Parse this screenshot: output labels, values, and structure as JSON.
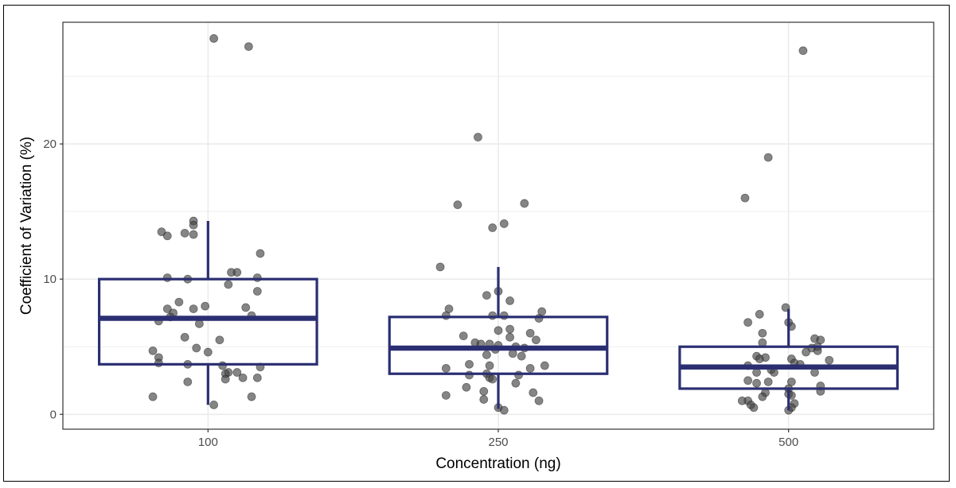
{
  "chart_data": {
    "type": "boxplot",
    "xlabel": "Concentration (ng)",
    "ylabel": "Coefficient of Variation (%)",
    "ylim": [
      -1.1,
      29
    ],
    "yticks": [
      0,
      10,
      20
    ],
    "categories": [
      "100",
      "250",
      "500"
    ],
    "grid": true,
    "colors": {
      "box": "#2b2f72",
      "point": "#444444",
      "grid": "#ebebeb",
      "panel_border": "#333333"
    },
    "boxes": [
      {
        "category": "100",
        "whisker_low": 0.7,
        "q1": 3.7,
        "median": 7.1,
        "q3": 10.0,
        "whisker_high": 14.3
      },
      {
        "category": "250",
        "whisker_low": 0.4,
        "q1": 3.0,
        "median": 4.9,
        "q3": 7.2,
        "whisker_high": 10.9
      },
      {
        "category": "500",
        "whisker_low": 0.3,
        "q1": 1.9,
        "median": 3.5,
        "q3": 5.0,
        "whisker_high": 7.8
      }
    ],
    "points": [
      {
        "category": "100",
        "offset": 0.02,
        "y": 27.8
      },
      {
        "category": "100",
        "offset": 0.14,
        "y": 27.2
      },
      {
        "category": "100",
        "offset": -0.16,
        "y": 13.5
      },
      {
        "category": "100",
        "offset": -0.14,
        "y": 13.2
      },
      {
        "category": "100",
        "offset": -0.08,
        "y": 13.4
      },
      {
        "category": "100",
        "offset": -0.05,
        "y": 13.3
      },
      {
        "category": "100",
        "offset": -0.05,
        "y": 14.3
      },
      {
        "category": "100",
        "offset": -0.05,
        "y": 14.0
      },
      {
        "category": "100",
        "offset": 0.18,
        "y": 11.9
      },
      {
        "category": "100",
        "offset": 0.1,
        "y": 10.5
      },
      {
        "category": "100",
        "offset": 0.08,
        "y": 10.5
      },
      {
        "category": "100",
        "offset": 0.17,
        "y": 10.1
      },
      {
        "category": "100",
        "offset": -0.14,
        "y": 10.1
      },
      {
        "category": "100",
        "offset": -0.07,
        "y": 10.0
      },
      {
        "category": "100",
        "offset": 0.07,
        "y": 9.6
      },
      {
        "category": "100",
        "offset": 0.17,
        "y": 9.1
      },
      {
        "category": "100",
        "offset": -0.1,
        "y": 8.3
      },
      {
        "category": "100",
        "offset": -0.01,
        "y": 8.0
      },
      {
        "category": "100",
        "offset": 0.13,
        "y": 7.9
      },
      {
        "category": "100",
        "offset": -0.14,
        "y": 7.8
      },
      {
        "category": "100",
        "offset": -0.05,
        "y": 7.8
      },
      {
        "category": "100",
        "offset": -0.12,
        "y": 7.5
      },
      {
        "category": "100",
        "offset": 0.15,
        "y": 7.3
      },
      {
        "category": "100",
        "offset": -0.13,
        "y": 7.2
      },
      {
        "category": "100",
        "offset": -0.17,
        "y": 6.9
      },
      {
        "category": "100",
        "offset": -0.03,
        "y": 6.7
      },
      {
        "category": "100",
        "offset": -0.08,
        "y": 5.7
      },
      {
        "category": "100",
        "offset": 0.04,
        "y": 5.5
      },
      {
        "category": "100",
        "offset": -0.04,
        "y": 4.9
      },
      {
        "category": "100",
        "offset": -0.19,
        "y": 4.7
      },
      {
        "category": "100",
        "offset": 0.0,
        "y": 4.6
      },
      {
        "category": "100",
        "offset": -0.17,
        "y": 4.2
      },
      {
        "category": "100",
        "offset": -0.17,
        "y": 3.8
      },
      {
        "category": "100",
        "offset": -0.07,
        "y": 3.7
      },
      {
        "category": "100",
        "offset": 0.05,
        "y": 3.6
      },
      {
        "category": "100",
        "offset": 0.18,
        "y": 3.5
      },
      {
        "category": "100",
        "offset": 0.07,
        "y": 3.1
      },
      {
        "category": "100",
        "offset": 0.1,
        "y": 3.1
      },
      {
        "category": "100",
        "offset": 0.06,
        "y": 3.0
      },
      {
        "category": "100",
        "offset": 0.12,
        "y": 2.7
      },
      {
        "category": "100",
        "offset": 0.17,
        "y": 2.7
      },
      {
        "category": "100",
        "offset": 0.06,
        "y": 2.6
      },
      {
        "category": "100",
        "offset": -0.07,
        "y": 2.4
      },
      {
        "category": "100",
        "offset": 0.15,
        "y": 1.3
      },
      {
        "category": "100",
        "offset": -0.19,
        "y": 1.3
      },
      {
        "category": "100",
        "offset": 0.02,
        "y": 0.7
      },
      {
        "category": "250",
        "offset": -0.07,
        "y": 20.5
      },
      {
        "category": "250",
        "offset": 0.09,
        "y": 15.6
      },
      {
        "category": "250",
        "offset": -0.14,
        "y": 15.5
      },
      {
        "category": "250",
        "offset": 0.02,
        "y": 14.1
      },
      {
        "category": "250",
        "offset": -0.02,
        "y": 13.8
      },
      {
        "category": "250",
        "offset": -0.2,
        "y": 10.9
      },
      {
        "category": "250",
        "offset": -0.04,
        "y": 8.8
      },
      {
        "category": "250",
        "offset": 0.0,
        "y": 9.1
      },
      {
        "category": "250",
        "offset": 0.04,
        "y": 8.4
      },
      {
        "category": "250",
        "offset": -0.17,
        "y": 7.8
      },
      {
        "category": "250",
        "offset": 0.15,
        "y": 7.6
      },
      {
        "category": "250",
        "offset": -0.18,
        "y": 7.3
      },
      {
        "category": "250",
        "offset": -0.02,
        "y": 7.3
      },
      {
        "category": "250",
        "offset": 0.02,
        "y": 7.3
      },
      {
        "category": "250",
        "offset": 0.14,
        "y": 7.1
      },
      {
        "category": "250",
        "offset": 0.04,
        "y": 6.3
      },
      {
        "category": "250",
        "offset": 0.0,
        "y": 6.2
      },
      {
        "category": "250",
        "offset": 0.11,
        "y": 6.0
      },
      {
        "category": "250",
        "offset": -0.12,
        "y": 5.8
      },
      {
        "category": "250",
        "offset": 0.04,
        "y": 5.7
      },
      {
        "category": "250",
        "offset": 0.13,
        "y": 5.5
      },
      {
        "category": "250",
        "offset": -0.08,
        "y": 5.3
      },
      {
        "category": "250",
        "offset": -0.06,
        "y": 5.2
      },
      {
        "category": "250",
        "offset": -0.03,
        "y": 5.2
      },
      {
        "category": "250",
        "offset": 0.0,
        "y": 5.1
      },
      {
        "category": "250",
        "offset": 0.06,
        "y": 5.0
      },
      {
        "category": "250",
        "offset": 0.09,
        "y": 4.9
      },
      {
        "category": "250",
        "offset": -0.01,
        "y": 4.8
      },
      {
        "category": "250",
        "offset": 0.05,
        "y": 4.5
      },
      {
        "category": "250",
        "offset": -0.04,
        "y": 4.4
      },
      {
        "category": "250",
        "offset": 0.08,
        "y": 4.3
      },
      {
        "category": "250",
        "offset": -0.1,
        "y": 3.7
      },
      {
        "category": "250",
        "offset": -0.03,
        "y": 3.6
      },
      {
        "category": "250",
        "offset": 0.16,
        "y": 3.6
      },
      {
        "category": "250",
        "offset": -0.18,
        "y": 3.4
      },
      {
        "category": "250",
        "offset": 0.11,
        "y": 3.4
      },
      {
        "category": "250",
        "offset": -0.04,
        "y": 3.0
      },
      {
        "category": "250",
        "offset": -0.1,
        "y": 2.9
      },
      {
        "category": "250",
        "offset": 0.07,
        "y": 2.9
      },
      {
        "category": "250",
        "offset": -0.03,
        "y": 2.7
      },
      {
        "category": "250",
        "offset": -0.02,
        "y": 2.6
      },
      {
        "category": "250",
        "offset": 0.06,
        "y": 2.3
      },
      {
        "category": "250",
        "offset": -0.11,
        "y": 2.0
      },
      {
        "category": "250",
        "offset": -0.05,
        "y": 1.7
      },
      {
        "category": "250",
        "offset": 0.12,
        "y": 1.6
      },
      {
        "category": "250",
        "offset": -0.18,
        "y": 1.4
      },
      {
        "category": "250",
        "offset": -0.05,
        "y": 1.1
      },
      {
        "category": "250",
        "offset": 0.14,
        "y": 1.0
      },
      {
        "category": "250",
        "offset": 0.0,
        "y": 0.5
      },
      {
        "category": "250",
        "offset": 0.02,
        "y": 0.3
      },
      {
        "category": "500",
        "offset": 0.05,
        "y": 26.9
      },
      {
        "category": "500",
        "offset": -0.07,
        "y": 19.0
      },
      {
        "category": "500",
        "offset": -0.15,
        "y": 16.0
      },
      {
        "category": "500",
        "offset": -0.01,
        "y": 7.9
      },
      {
        "category": "500",
        "offset": -0.1,
        "y": 7.4
      },
      {
        "category": "500",
        "offset": 0.0,
        "y": 6.8
      },
      {
        "category": "500",
        "offset": -0.14,
        "y": 6.8
      },
      {
        "category": "500",
        "offset": 0.01,
        "y": 6.5
      },
      {
        "category": "500",
        "offset": -0.09,
        "y": 6.0
      },
      {
        "category": "500",
        "offset": 0.09,
        "y": 5.6
      },
      {
        "category": "500",
        "offset": 0.11,
        "y": 5.5
      },
      {
        "category": "500",
        "offset": -0.09,
        "y": 5.3
      },
      {
        "category": "500",
        "offset": 0.1,
        "y": 5.0
      },
      {
        "category": "500",
        "offset": 0.08,
        "y": 4.9
      },
      {
        "category": "500",
        "offset": 0.1,
        "y": 4.7
      },
      {
        "category": "500",
        "offset": 0.06,
        "y": 4.6
      },
      {
        "category": "500",
        "offset": -0.11,
        "y": 4.3
      },
      {
        "category": "500",
        "offset": -0.08,
        "y": 4.2
      },
      {
        "category": "500",
        "offset": -0.1,
        "y": 4.1
      },
      {
        "category": "500",
        "offset": 0.01,
        "y": 4.1
      },
      {
        "category": "500",
        "offset": 0.14,
        "y": 4.0
      },
      {
        "category": "500",
        "offset": 0.02,
        "y": 3.8
      },
      {
        "category": "500",
        "offset": 0.04,
        "y": 3.7
      },
      {
        "category": "500",
        "offset": -0.14,
        "y": 3.6
      },
      {
        "category": "500",
        "offset": -0.06,
        "y": 3.3
      },
      {
        "category": "500",
        "offset": -0.11,
        "y": 3.1
      },
      {
        "category": "500",
        "offset": -0.05,
        "y": 3.1
      },
      {
        "category": "500",
        "offset": 0.09,
        "y": 3.1
      },
      {
        "category": "500",
        "offset": -0.14,
        "y": 2.5
      },
      {
        "category": "500",
        "offset": -0.07,
        "y": 2.4
      },
      {
        "category": "500",
        "offset": -0.11,
        "y": 2.3
      },
      {
        "category": "500",
        "offset": 0.01,
        "y": 2.4
      },
      {
        "category": "500",
        "offset": 0.11,
        "y": 2.1
      },
      {
        "category": "500",
        "offset": 0.0,
        "y": 1.9
      },
      {
        "category": "500",
        "offset": 0.11,
        "y": 1.7
      },
      {
        "category": "500",
        "offset": -0.08,
        "y": 1.6
      },
      {
        "category": "500",
        "offset": 0.0,
        "y": 1.5
      },
      {
        "category": "500",
        "offset": 0.01,
        "y": 1.4
      },
      {
        "category": "500",
        "offset": -0.09,
        "y": 1.3
      },
      {
        "category": "500",
        "offset": -0.14,
        "y": 1.0
      },
      {
        "category": "500",
        "offset": -0.16,
        "y": 1.0
      },
      {
        "category": "500",
        "offset": -0.13,
        "y": 0.7
      },
      {
        "category": "500",
        "offset": 0.02,
        "y": 0.8
      },
      {
        "category": "500",
        "offset": -0.12,
        "y": 0.5
      },
      {
        "category": "500",
        "offset": 0.01,
        "y": 0.5
      },
      {
        "category": "500",
        "offset": 0.0,
        "y": 0.3
      }
    ]
  }
}
